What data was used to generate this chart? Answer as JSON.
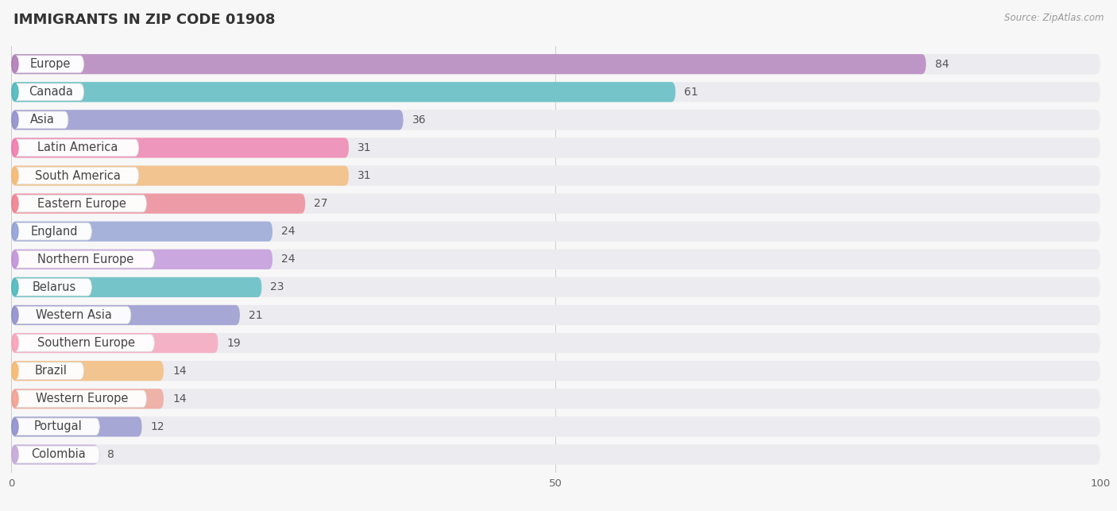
{
  "title": "IMMIGRANTS IN ZIP CODE 01908",
  "source": "Source: ZipAtlas.com",
  "categories": [
    "Europe",
    "Canada",
    "Asia",
    "Latin America",
    "South America",
    "Eastern Europe",
    "England",
    "Northern Europe",
    "Belarus",
    "Western Asia",
    "Southern Europe",
    "Brazil",
    "Western Europe",
    "Portugal",
    "Colombia"
  ],
  "values": [
    84,
    61,
    36,
    31,
    31,
    27,
    24,
    24,
    23,
    21,
    19,
    14,
    14,
    12,
    8
  ],
  "bar_colors": [
    "#b07ab8",
    "#4db8bc",
    "#9090cc",
    "#f07aaa",
    "#f5b870",
    "#f08090",
    "#90a0d4",
    "#c090d8",
    "#4db8bc",
    "#9090cc",
    "#f8a0b8",
    "#f5b870",
    "#f0a090",
    "#9090cc",
    "#c4a8d8"
  ],
  "background_color": "#f7f7f7",
  "bar_bg_color": "#ebebf0",
  "xlim": [
    0,
    100
  ],
  "title_fontsize": 13,
  "label_fontsize": 10.5,
  "value_fontsize": 10
}
